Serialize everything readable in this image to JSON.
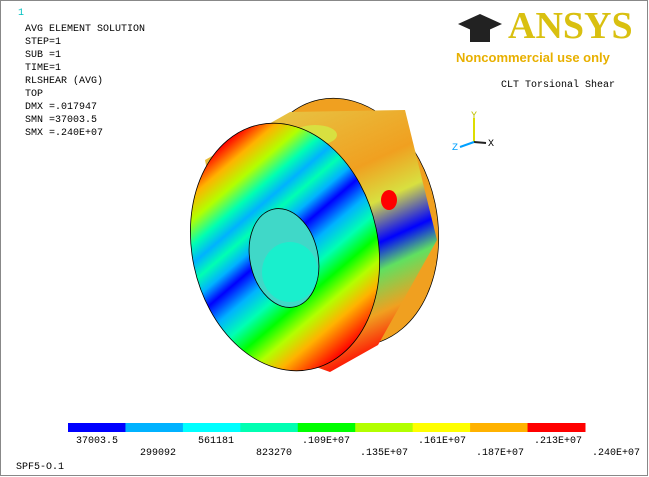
{
  "window_number": "1",
  "info_lines": [
    "AVG ELEMENT SOLUTION",
    "STEP=1",
    "SUB =1",
    "TIME=1",
    "RLSHEAR  (AVG)",
    "TOP",
    "DMX =.017947",
    "SMN =37003.5",
    "SMX =.240E+07"
  ],
  "logo": {
    "brand": "ANSYS",
    "notice": "Noncommercial use only"
  },
  "title": "CLT Torsional Shear",
  "triad": {
    "y": "Y",
    "x": "X",
    "z": "Z"
  },
  "legend": {
    "labels": [
      "37003.5",
      "299092",
      "561181",
      "823270",
      ".109E+07",
      ".135E+07",
      ".161E+07",
      ".187E+07",
      ".213E+07",
      ".240E+07"
    ],
    "colors": [
      "#0000ff",
      "#00b2ff",
      "#00ffff",
      "#00ffb2",
      "#00ff00",
      "#b2ff00",
      "#ffff00",
      "#ffb200",
      "#ff0000"
    ]
  },
  "footer": "SPF5-O.1"
}
